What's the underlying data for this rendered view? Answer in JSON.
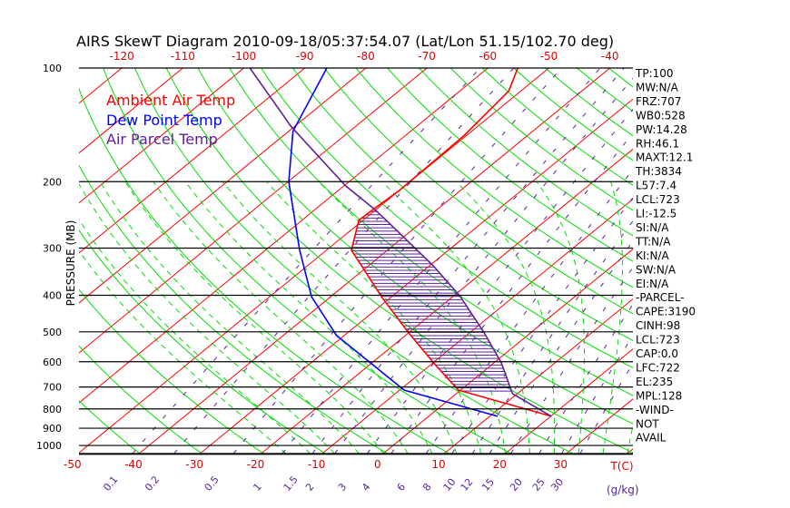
{
  "chart_data": {
    "type": "line",
    "title": "AIRS SkewT Diagram 2010-09-18/05:37:54.07 (Lat/Lon 51.15/102.70 deg)",
    "ylabel": "PRESSURE (MB)",
    "xlabel": "T(C)",
    "mixing_ratio_label": "(g/kg)",
    "ylim": [
      1050,
      100
    ],
    "y_ticks": [
      "100",
      "200",
      "300",
      "400",
      "500",
      "600",
      "700",
      "800",
      "900",
      "1000"
    ],
    "y_tick_values": [
      100,
      200,
      300,
      400,
      500,
      600,
      700,
      800,
      900,
      1000
    ],
    "top_x_ticks": [
      "-120",
      "-110",
      "-100",
      "-90",
      "-80",
      "-70",
      "-60",
      "-50",
      "-40"
    ],
    "top_x_tick_values": [
      -120,
      -110,
      -100,
      -90,
      -80,
      -70,
      -60,
      -50,
      -40
    ],
    "bottom_x_ticks": [
      "-50",
      "-40",
      "-30",
      "-20",
      "-10",
      "0",
      "10",
      "20",
      "30"
    ],
    "bottom_x_tick_values": [
      -50,
      -40,
      -30,
      -20,
      -10,
      0,
      10,
      20,
      30
    ],
    "mixing_ratio_ticks": [
      "0.1",
      "0.2",
      "0.5",
      "1",
      "1.5",
      "2",
      "3",
      "4",
      "6",
      "8",
      "10",
      "12",
      "15",
      "20",
      "25",
      "30"
    ],
    "mixing_ratio_values": [
      0.1,
      0.2,
      0.5,
      1,
      1.5,
      2,
      3,
      4,
      6,
      8,
      10,
      12,
      15,
      20,
      25,
      30
    ],
    "legend": [
      {
        "label": "Ambient Air Temp",
        "color": "#ff0000"
      },
      {
        "label": "Dew Point Temp",
        "color": "#0000ff"
      },
      {
        "label": "Air Parcel Temp",
        "color": "#60209a"
      }
    ],
    "legend_position": "top-left",
    "series": [
      {
        "name": "Ambient Air Temp",
        "color": "#ff0000",
        "p": [
          837,
          713,
          614,
          503,
          405,
          341,
          304,
          253,
          236,
          211,
          151,
          115,
          100
        ],
        "t": [
          20.1,
          -0.4,
          -9.0,
          -20.0,
          -31.5,
          -40.1,
          -45.9,
          -50.7,
          -50.5,
          -50.0,
          -50.4,
          -52.0,
          -55.1
        ]
      },
      {
        "name": "Dew Point Temp",
        "color": "#0000ff",
        "p": [
          837,
          713,
          511,
          403,
          303,
          200,
          147,
          100
        ],
        "t": [
          11.3,
          -9.3,
          -31.3,
          -43.2,
          -54.5,
          -69.9,
          -79.3,
          -86.4
        ]
      },
      {
        "name": "Air Parcel Temp",
        "color": "#60209a",
        "p": [
          837,
          729,
          604,
          503,
          403,
          334,
          256,
          236,
          205,
          143,
          100
        ],
        "t": [
          20.1,
          9.2,
          1.2,
          -7.6,
          -18.8,
          -29.4,
          -45.5,
          -50.5,
          -59.8,
          -80.5,
          -99.0
        ]
      }
    ],
    "cape_shading": {
      "p_bottom": 722,
      "p_top": 236
    }
  },
  "stats": [
    "TP:100",
    "MW:N/A",
    "FRZ:707",
    "WB0:528",
    "PW:14.28",
    "RH:46.1",
    "MAXT:12.1",
    "TH:3834",
    "L57:7.4",
    "LCL:723",
    "LI:-12.5",
    "SI:N/A",
    "TT:N/A",
    "KI:N/A",
    "SW:N/A",
    "EI:N/A",
    "-PARCEL-",
    "CAPE:3190",
    "CINH:98",
    "LCL:723",
    "CAP:0.0",
    "LFC:722",
    "EL:235",
    "MPL:128",
    "-WIND-",
    "NOT",
    "AVAIL"
  ]
}
